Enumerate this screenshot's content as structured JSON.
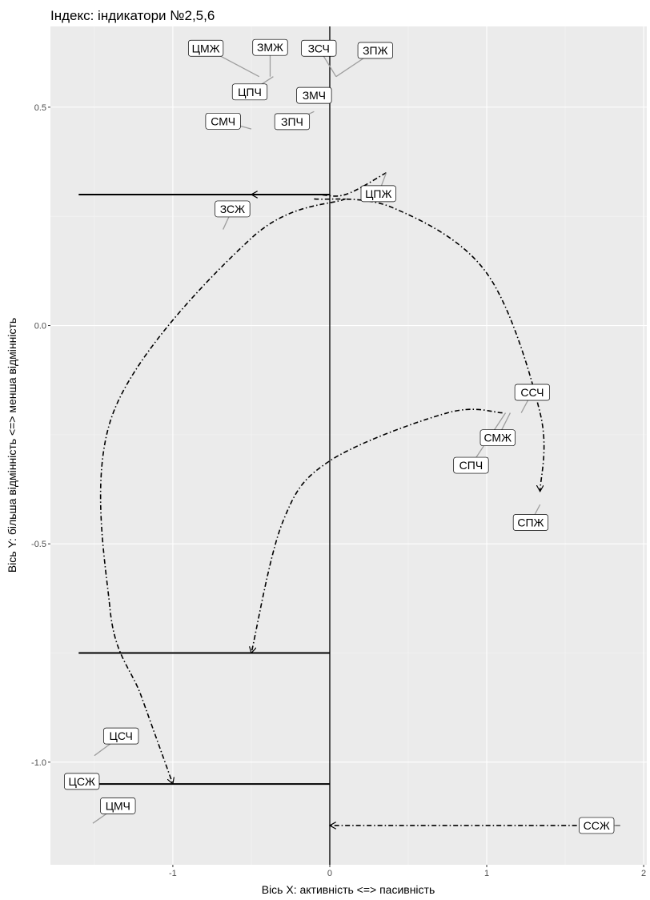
{
  "chart_data": {
    "type": "scatter",
    "title": "Індекс: індикатори №2,5,6",
    "xlabel": "Вісь X: активність <=> пасивність",
    "ylabel": "Вісь Y: більша відмінність <=> менша відмінність",
    "xlim": [
      -1.78,
      2.02
    ],
    "ylim": [
      -1.235,
      0.685
    ],
    "xticks": [
      -1,
      0,
      1,
      2
    ],
    "xtick_labels": [
      "-1",
      "0",
      "1",
      "2"
    ],
    "yticks": [
      0.5,
      0.0,
      -0.5,
      -1.0
    ],
    "ytick_labels": [
      "0.5",
      "0.0",
      "-0.5",
      "-1.0"
    ],
    "grid": true,
    "background": "#ebebeb",
    "vline_x": 0,
    "reference_lines": [
      {
        "y": 0.3,
        "x_from": -1.6,
        "x_to": 0.0
      },
      {
        "y": -0.75,
        "x_from": -1.6,
        "x_to": 0.0
      },
      {
        "y": -1.05,
        "x_from": -1.6,
        "x_to": 0.0
      }
    ],
    "points": [
      {
        "label": "ЦМЖ",
        "x": -0.45,
        "y": 0.57,
        "lx": -0.79,
        "ly": 0.635
      },
      {
        "label": "ЗМЖ",
        "x": -0.38,
        "y": 0.57,
        "lx": -0.38,
        "ly": 0.637
      },
      {
        "label": "ЗСЧ",
        "x": 0.04,
        "y": 0.57,
        "lx": -0.07,
        "ly": 0.635
      },
      {
        "label": "ЗПЖ",
        "x": 0.04,
        "y": 0.57,
        "lx": 0.29,
        "ly": 0.63
      },
      {
        "label": "ЦПЧ",
        "x": -0.36,
        "y": 0.57,
        "lx": -0.51,
        "ly": 0.535
      },
      {
        "label": "ЗМЧ",
        "x": -0.02,
        "y": 0.54,
        "lx": -0.1,
        "ly": 0.527
      },
      {
        "label": "СМЧ",
        "x": -0.5,
        "y": 0.45,
        "lx": -0.68,
        "ly": 0.468
      },
      {
        "label": "ЗПЧ",
        "x": -0.1,
        "y": 0.49,
        "lx": -0.24,
        "ly": 0.467
      },
      {
        "label": "ЗСЖ",
        "x": -0.68,
        "y": 0.22,
        "lx": -0.62,
        "ly": 0.267
      },
      {
        "label": "ЦПЖ",
        "x": 0.36,
        "y": 0.35,
        "lx": 0.31,
        "ly": 0.302
      },
      {
        "label": "ССЧ",
        "x": 1.22,
        "y": -0.2,
        "lx": 1.29,
        "ly": -0.153
      },
      {
        "label": "СМЖ",
        "x": 1.15,
        "y": -0.2,
        "lx": 1.07,
        "ly": -0.257
      },
      {
        "label": "СПЧ",
        "x": 1.12,
        "y": -0.2,
        "lx": 0.9,
        "ly": -0.32
      },
      {
        "label": "СПЖ",
        "x": 1.34,
        "y": -0.41,
        "lx": 1.28,
        "ly": -0.451
      },
      {
        "label": "ЦСЧ",
        "x": -1.5,
        "y": -0.985,
        "lx": -1.33,
        "ly": -0.94
      },
      {
        "label": "ЦСЖ",
        "x": -1.6,
        "y": -1.05,
        "lx": -1.58,
        "ly": -1.044
      },
      {
        "label": "ЦМЧ",
        "x": -1.51,
        "y": -1.14,
        "lx": -1.35,
        "ly": -1.1
      },
      {
        "label": "ССЖ",
        "x": 1.85,
        "y": -1.145,
        "lx": 1.7,
        "ly": -1.145
      }
    ],
    "paths": [
      {
        "name": "",
        "points": [
          [
            0.36,
            0.35
          ],
          [
            0.1,
            0.3
          ],
          [
            -0.1,
            0.3
          ],
          [
            -0.5,
            0.3
          ]
        ]
      },
      {
        "name": "",
        "points": [
          [
            -0.1,
            0.29
          ],
          [
            0.4,
            0.27
          ],
          [
            1.0,
            0.12
          ],
          [
            1.34,
            -0.2
          ],
          [
            1.34,
            -0.38
          ]
        ]
      },
      {
        "name": "",
        "points": [
          [
            0.1,
            0.29
          ],
          [
            -0.5,
            0.2
          ],
          [
            -1.38,
            -0.2
          ],
          [
            -1.4,
            -0.65
          ],
          [
            -1.2,
            -0.85
          ],
          [
            -1.0,
            -1.05
          ]
        ]
      },
      {
        "name": "",
        "points": [
          [
            1.1,
            -0.2
          ],
          [
            0.75,
            -0.2
          ],
          [
            0.0,
            -0.31
          ],
          [
            -0.3,
            -0.45
          ],
          [
            -0.5,
            -0.75
          ]
        ]
      },
      {
        "name": "",
        "points": [
          [
            1.85,
            -1.145
          ],
          [
            0.0,
            -1.145
          ]
        ]
      }
    ]
  }
}
